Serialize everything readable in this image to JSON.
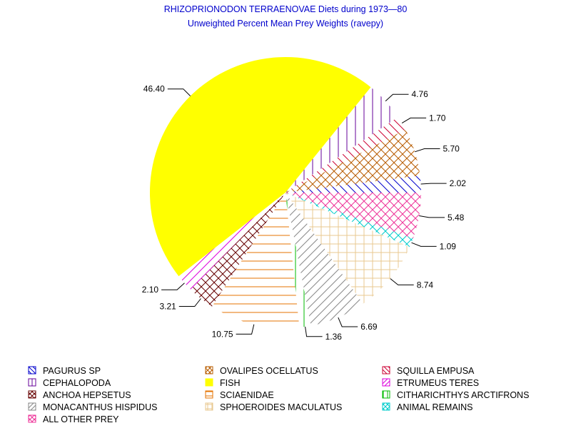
{
  "chart_data": {
    "type": "pie",
    "title": "RHIZOPRIONODON TERRAENOVAE Diets during 1973—80",
    "subtitle": "Unweighted Percent Mean Prey Weights (ravepy)",
    "slices": [
      {
        "name": "PAGURUS SP",
        "value": 2.02,
        "label": "2.02",
        "color": "#0000cc",
        "pattern": "diag-down"
      },
      {
        "name": "OVALIPES OCELLATUS",
        "value": 5.7,
        "label": "5.70",
        "color": "#b85c00",
        "pattern": "cross-diag"
      },
      {
        "name": "SQUILLA EMPUSA",
        "value": 1.7,
        "label": "1.70",
        "color": "#cc0033",
        "pattern": "diag-down"
      },
      {
        "name": "CEPHALOPODA",
        "value": 4.76,
        "label": "4.76",
        "color": "#660099",
        "pattern": "vertical"
      },
      {
        "name": "FISH",
        "value": 46.4,
        "label": "46.40",
        "color": "#ffff00",
        "pattern": "solid"
      },
      {
        "name": "ETRUMEUS TERES",
        "value": 2.1,
        "label": "2.10",
        "color": "#dd00dd",
        "pattern": "diag-up"
      },
      {
        "name": "ANCHOA HEPSETUS",
        "value": 3.21,
        "label": "3.21",
        "color": "#660000",
        "pattern": "cross-diag"
      },
      {
        "name": "SCIAENIDAE",
        "value": 10.75,
        "label": "10.75",
        "color": "#e67300",
        "pattern": "horizontal"
      },
      {
        "name": "CITHARICHTHYS ARCTIFRONS",
        "value": 1.36,
        "label": "1.36",
        "color": "#00bb00",
        "pattern": "vertical"
      },
      {
        "name": "MONACANTHUS HISPIDUS",
        "value": 6.69,
        "label": "6.69",
        "color": "#888888",
        "pattern": "diag-up"
      },
      {
        "name": "SPHOEROIDES MACULATUS",
        "value": 8.74,
        "label": "8.74",
        "color": "#e8c890",
        "pattern": "grid"
      },
      {
        "name": "ANIMAL REMAINS",
        "value": 1.09,
        "label": "1.09",
        "color": "#00cccc",
        "pattern": "cross-diag"
      },
      {
        "name": "ALL OTHER PREY",
        "value": 5.48,
        "label": "5.48",
        "color": "#ee3399",
        "pattern": "cross-diag"
      }
    ],
    "legend_placement": "bottom"
  }
}
